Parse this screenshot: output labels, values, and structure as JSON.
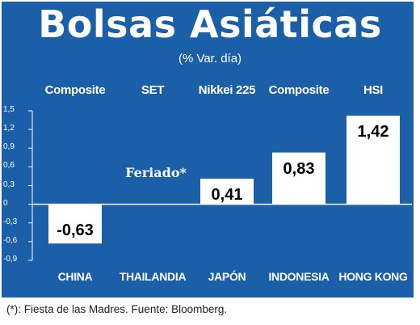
{
  "title": "Bolsas Asiáticas",
  "subtitle": "(% Var. día)",
  "footnote": "(*): Fiesta de las Madres. Fuente: Bloomberg.",
  "colors": {
    "background": "#1a5fa8",
    "bar": "#ffffff",
    "axis": "#ffffff",
    "value_text": "#000000"
  },
  "chart_data": {
    "type": "bar",
    "categories": [
      "CHINA",
      "THAILANDIA",
      "JAPÓN",
      "INDONESIA",
      "HONG KONG"
    ],
    "index_labels": [
      "Composite",
      "SET",
      "Nikkei 225",
      "Composite",
      "HSI"
    ],
    "values": [
      -0.63,
      null,
      0.41,
      0.83,
      1.42
    ],
    "value_labels": [
      "-0,63",
      "",
      "0,41",
      "0,83",
      "1,42"
    ],
    "annotations": [
      {
        "category": "THAILANDIA",
        "text": "Feriado*"
      }
    ],
    "yticks": [
      1.5,
      1.2,
      0.9,
      0.6,
      0.3,
      0,
      -0.3,
      -0.6,
      -0.9
    ],
    "ytick_labels": [
      "1,5",
      "1,2",
      "0,9",
      "0,6",
      "0,3",
      "0",
      "-0,3",
      "-0,6",
      "-0,9"
    ],
    "ylim": [
      -0.9,
      1.5
    ],
    "grid": false,
    "xlabel": "",
    "ylabel": ""
  }
}
